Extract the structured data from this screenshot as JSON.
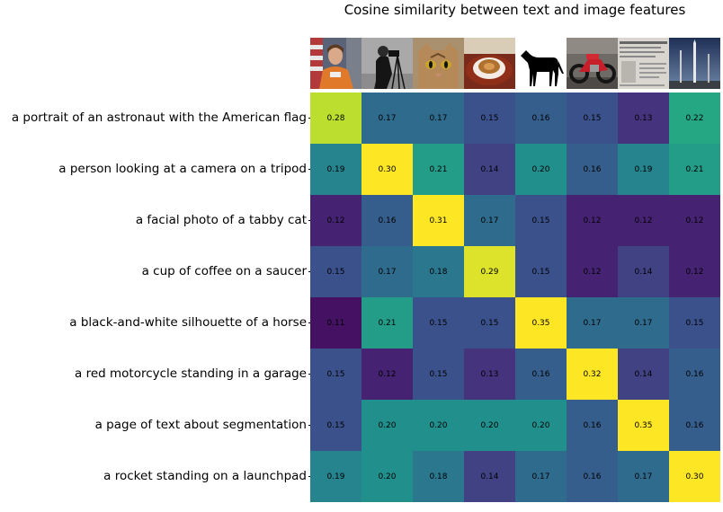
{
  "chart_data": {
    "type": "heatmap",
    "title": "Cosine similarity between text and image features",
    "rows": [
      "a portrait of an astronaut with the American flag",
      "a person looking at a camera on a tripod",
      "a facial photo of a tabby cat",
      "a cup of coffee on a saucer",
      "a black-and-white silhouette of a horse",
      "a red motorcycle standing in a garage",
      "a page of text about segmentation",
      "a rocket standing on a launchpad"
    ],
    "columns": [
      "astronaut-image",
      "camera-image",
      "cat-image",
      "coffee-image",
      "horse-image",
      "motorcycle-image",
      "text-page-image",
      "rocket-image"
    ],
    "values": [
      [
        0.28,
        0.17,
        0.17,
        0.15,
        0.16,
        0.15,
        0.13,
        0.22
      ],
      [
        0.19,
        0.3,
        0.21,
        0.14,
        0.2,
        0.16,
        0.19,
        0.21
      ],
      [
        0.12,
        0.16,
        0.31,
        0.17,
        0.15,
        0.12,
        0.12,
        0.12
      ],
      [
        0.15,
        0.17,
        0.18,
        0.29,
        0.15,
        0.12,
        0.14,
        0.12
      ],
      [
        0.11,
        0.21,
        0.15,
        0.15,
        0.35,
        0.17,
        0.17,
        0.15
      ],
      [
        0.15,
        0.12,
        0.15,
        0.13,
        0.16,
        0.32,
        0.14,
        0.16
      ],
      [
        0.15,
        0.2,
        0.2,
        0.2,
        0.2,
        0.16,
        0.35,
        0.16
      ],
      [
        0.19,
        0.2,
        0.18,
        0.14,
        0.17,
        0.16,
        0.17,
        0.3
      ]
    ],
    "labels": [
      [
        "0.28",
        "0.17",
        "0.17",
        "0.15",
        "0.16",
        "0.15",
        "0.13",
        "0.22"
      ],
      [
        "0.19",
        "0.30",
        "0.21",
        "0.14",
        "0.20",
        "0.16",
        "0.19",
        "0.21"
      ],
      [
        "0.12",
        "0.16",
        "0.31",
        "0.17",
        "0.15",
        "0.12",
        "0.12",
        "0.12"
      ],
      [
        "0.15",
        "0.17",
        "0.18",
        "0.29",
        "0.15",
        "0.12",
        "0.14",
        "0.12"
      ],
      [
        "0.11",
        "0.21",
        "0.15",
        "0.15",
        "0.35",
        "0.17",
        "0.17",
        "0.15"
      ],
      [
        "0.15",
        "0.12",
        "0.15",
        "0.13",
        "0.16",
        "0.32",
        "0.14",
        "0.16"
      ],
      [
        "0.15",
        "0.20",
        "0.20",
        "0.20",
        "0.20",
        "0.16",
        "0.35",
        "0.16"
      ],
      [
        "0.19",
        "0.20",
        "0.18",
        "0.14",
        "0.17",
        "0.16",
        "0.17",
        "0.30"
      ]
    ],
    "vmin": 0.1,
    "vmax": 0.3,
    "colormap": "viridis"
  }
}
